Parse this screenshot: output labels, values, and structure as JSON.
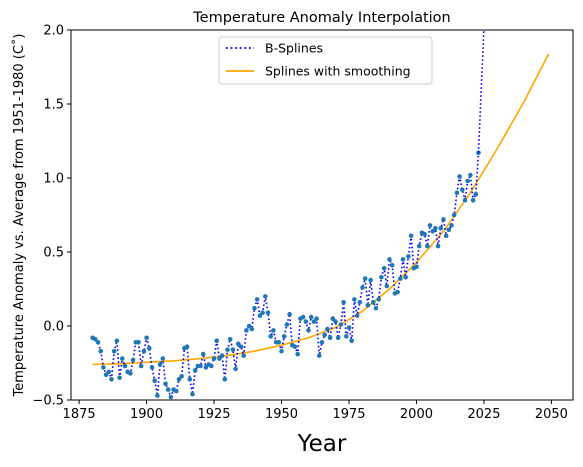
{
  "chart_data": {
    "type": "line",
    "title": "Temperature Anomaly Interpolation",
    "xlabel": "Year",
    "ylabel": "Temperature Anomaly vs. Average from 1951-1980 (C$^\\circ$)",
    "ylabel_display": "Temperature Anomaly vs. Average from 1951-1980 (C˚)",
    "xlim": [
      1872,
      2058
    ],
    "ylim": [
      -0.5,
      2.0
    ],
    "xticks": [
      1875,
      1900,
      1925,
      1950,
      1975,
      2000,
      2025,
      2050
    ],
    "yticks": [
      -0.5,
      0.0,
      0.5,
      1.0,
      1.5,
      2.0
    ],
    "ytick_labels": [
      "−0.5",
      "0.0",
      "0.5",
      "1.0",
      "1.5",
      "2.0"
    ],
    "grid": false,
    "legend_position": "top-center",
    "series": [
      {
        "name": "B-Splines",
        "style": "dotted",
        "color": "#0000ff",
        "x": [
          2023,
          2024,
          2025
        ],
        "y": [
          1.17,
          1.6,
          2.0
        ]
      },
      {
        "name": "Splines with smoothing",
        "style": "solid",
        "color": "#ffa500",
        "x": [
          1880,
          1890,
          1900,
          1910,
          1920,
          1930,
          1940,
          1950,
          1960,
          1970,
          1980,
          1990,
          2000,
          2010,
          2020,
          2030,
          2040,
          2049
        ],
        "y": [
          -0.26,
          -0.255,
          -0.245,
          -0.235,
          -0.22,
          -0.2,
          -0.17,
          -0.13,
          -0.08,
          -0.01,
          0.1,
          0.25,
          0.43,
          0.64,
          0.9,
          1.2,
          1.52,
          1.84
        ]
      }
    ],
    "observations": {
      "color": "#1f77b4",
      "x_start": 1880,
      "y": [
        -0.08,
        -0.09,
        -0.11,
        -0.17,
        -0.28,
        -0.33,
        -0.31,
        -0.36,
        -0.17,
        -0.1,
        -0.35,
        -0.22,
        -0.27,
        -0.31,
        -0.32,
        -0.23,
        -0.11,
        -0.11,
        -0.27,
        -0.17,
        -0.08,
        -0.15,
        -0.28,
        -0.37,
        -0.47,
        -0.26,
        -0.22,
        -0.39,
        -0.43,
        -0.48,
        -0.43,
        -0.44,
        -0.36,
        -0.34,
        -0.15,
        -0.14,
        -0.36,
        -0.46,
        -0.3,
        -0.27,
        -0.27,
        -0.19,
        -0.28,
        -0.26,
        -0.27,
        -0.22,
        -0.1,
        -0.22,
        -0.2,
        -0.36,
        -0.16,
        -0.09,
        -0.16,
        -0.29,
        -0.12,
        -0.14,
        -0.2,
        -0.03,
        -0.0,
        -0.02,
        0.12,
        0.18,
        0.07,
        0.09,
        0.2,
        0.09,
        -0.07,
        -0.03,
        -0.11,
        -0.11,
        -0.17,
        -0.07,
        0.01,
        0.08,
        -0.13,
        -0.14,
        -0.19,
        0.05,
        0.06,
        0.03,
        -0.03,
        0.06,
        0.03,
        0.05,
        -0.2,
        -0.11,
        -0.06,
        -0.02,
        -0.08,
        0.05,
        0.03,
        -0.08,
        0.01,
        0.16,
        -0.07,
        -0.01,
        -0.1,
        0.18,
        0.07,
        0.16,
        0.26,
        0.32,
        0.14,
        0.31,
        0.16,
        0.12,
        0.18,
        0.33,
        0.39,
        0.27,
        0.45,
        0.41,
        0.22,
        0.23,
        0.32,
        0.45,
        0.33,
        0.47,
        0.61,
        0.39,
        0.4,
        0.54,
        0.63,
        0.62,
        0.54,
        0.68,
        0.64,
        0.66,
        0.54,
        0.66,
        0.72,
        0.61,
        0.65,
        0.68,
        0.75,
        0.9,
        1.01,
        0.92,
        0.85,
        0.98,
        1.02,
        0.85,
        0.89,
        1.17
      ]
    }
  }
}
